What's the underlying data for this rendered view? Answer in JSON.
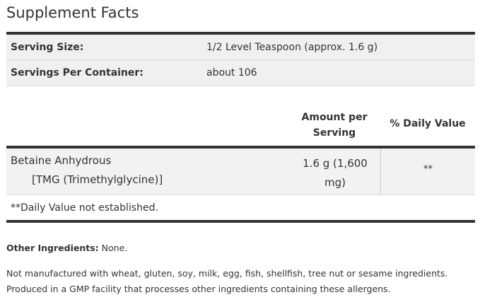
{
  "title": "Supplement Facts",
  "serving": {
    "size_label": "Serving Size:",
    "size_value": "1/2 Level Teaspoon (approx. 1.6 g)",
    "per_container_label": "Servings Per Container:",
    "per_container_value": "about 106"
  },
  "table": {
    "headers": {
      "amount": "Amount per Serving",
      "dv": "% Daily Value"
    },
    "rows": [
      {
        "name": "Betaine Anhydrous",
        "subname": "[TMG (Trimethylglycine)]",
        "amount": "1.6 g (1,600 mg)",
        "dv": "**"
      }
    ],
    "footnote": "**Daily Value not established."
  },
  "other_ingredients": {
    "label": "Other Ingredients:",
    "value": "None."
  },
  "allergen_lines": [
    "Not manufactured with wheat, gluten, soy, milk, egg, fish, shellfish, tree nut or sesame ingredients.",
    "Produced in a GMP facility that processes other ingredients containing these allergens."
  ]
}
